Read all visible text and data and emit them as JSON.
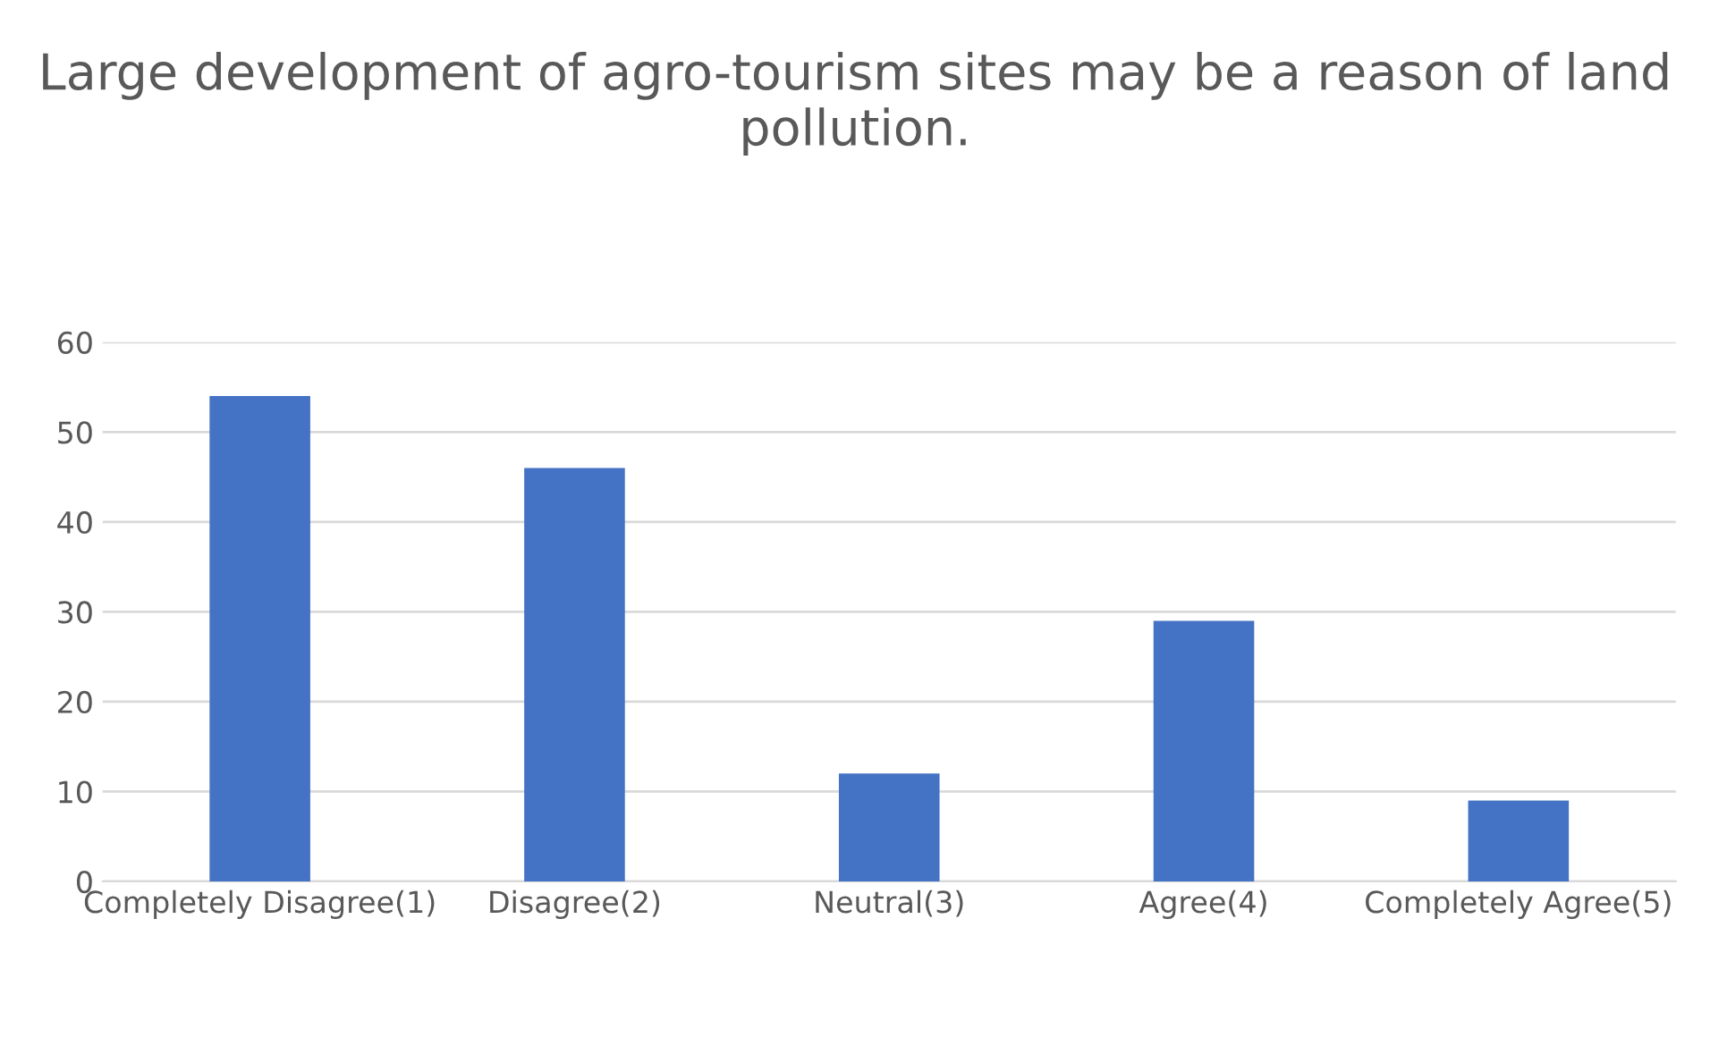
{
  "chart_data": {
    "type": "bar",
    "title": "Large development of agro-tourism sites may be a reason of land pollution.",
    "categories": [
      "Completely Disagree(1)",
      "Disagree(2)",
      "Neutral(3)",
      "Agree(4)",
      "Completely Agree(5)"
    ],
    "values": [
      54,
      46,
      12,
      29,
      9
    ],
    "color": "#4472c4",
    "ylim": [
      0,
      60
    ],
    "yticks": [
      0,
      10,
      20,
      30,
      40,
      50,
      60
    ],
    "grid": "y"
  }
}
